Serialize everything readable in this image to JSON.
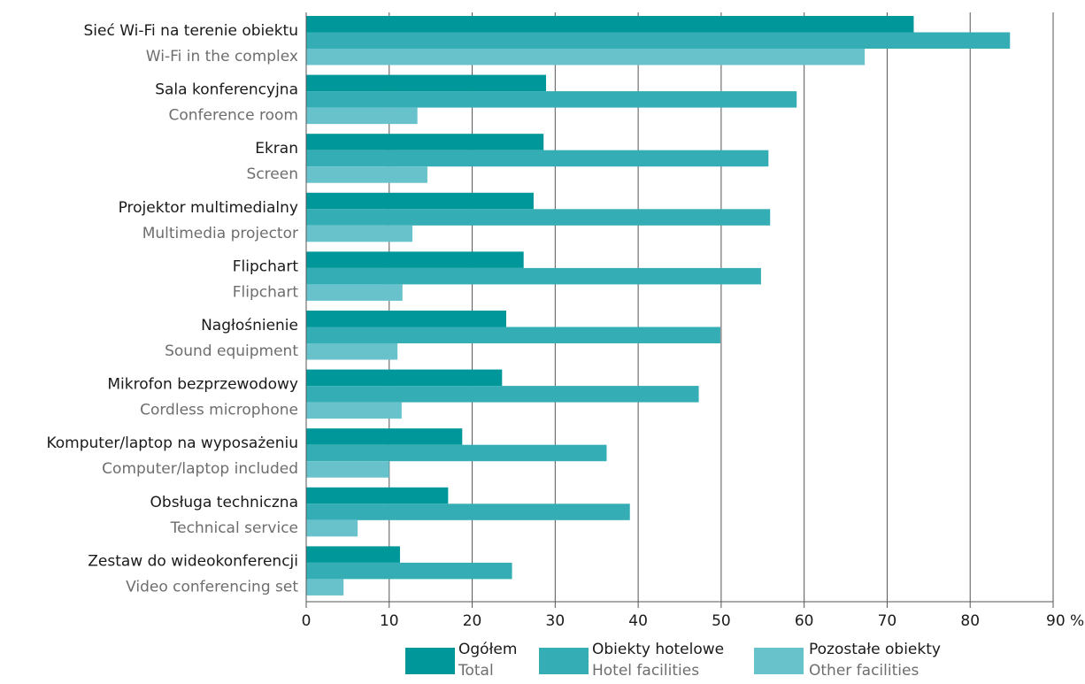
{
  "chart_data": {
    "type": "bar",
    "orientation": "horizontal",
    "categories": [
      {
        "pl": "Sieć Wi-Fi na terenie obiektu",
        "en": "Wi-Fi in the complex"
      },
      {
        "pl": "Sala konferencyjna",
        "en": "Conference room"
      },
      {
        "pl": "Ekran",
        "en": "Screen"
      },
      {
        "pl": "Projektor multimedialny",
        "en": "Multimedia projector"
      },
      {
        "pl": "Flipchart",
        "en": "Flipchart"
      },
      {
        "pl": "Nagłośnienie",
        "en": "Sound equipment"
      },
      {
        "pl": "Mikrofon bezprzewodowy",
        "en": "Cordless microphone"
      },
      {
        "pl": "Komputer/laptop na wyposażeniu",
        "en": "Computer/laptop included"
      },
      {
        "pl": "Obsługa techniczna",
        "en": "Technical service"
      },
      {
        "pl": "Zestaw do wideokonferencji",
        "en": "Video conferencing set"
      }
    ],
    "series": [
      {
        "name": "Ogółem",
        "name_en": "Total",
        "color": "#00979b",
        "values": [
          73.2,
          28.9,
          28.6,
          27.4,
          26.2,
          24.1,
          23.6,
          18.8,
          17.1,
          11.3
        ]
      },
      {
        "name": "Obiekty hotelowe",
        "name_en": "Hotel facilities",
        "color": "#34adb5",
        "values": [
          84.8,
          59.1,
          55.7,
          55.9,
          54.8,
          49.9,
          47.3,
          36.2,
          39.0,
          24.8
        ]
      },
      {
        "name": "Pozostałe obiekty",
        "name_en": "Other facilities",
        "color": "#68c2cb",
        "values": [
          67.3,
          13.4,
          14.6,
          12.8,
          11.6,
          11.0,
          11.5,
          10.0,
          6.2,
          4.5
        ]
      }
    ],
    "xlim": [
      0,
      90
    ],
    "xticks": [
      0,
      10,
      20,
      30,
      40,
      50,
      60,
      70,
      80,
      90
    ],
    "x_unit": "%",
    "grid": "vertical",
    "legend": "bottom-center"
  }
}
